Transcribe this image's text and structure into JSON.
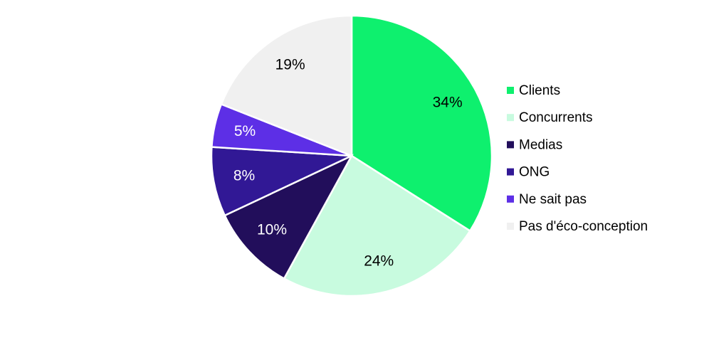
{
  "chart_data": {
    "type": "pie",
    "categories": [
      "Clients",
      "Concurrents",
      "Medias",
      "ONG",
      "Ne sait pas",
      "Pas d'éco-conception"
    ],
    "values": [
      34,
      24,
      10,
      8,
      5,
      19
    ],
    "value_labels": [
      "34%",
      "24%",
      "10%",
      "8%",
      "5%",
      "19%"
    ],
    "colors": [
      "#0ef06e",
      "#c8fbdf",
      "#220e5b",
      "#311895",
      "#5d2fe6",
      "#f0f0f0"
    ],
    "legend": "right"
  }
}
